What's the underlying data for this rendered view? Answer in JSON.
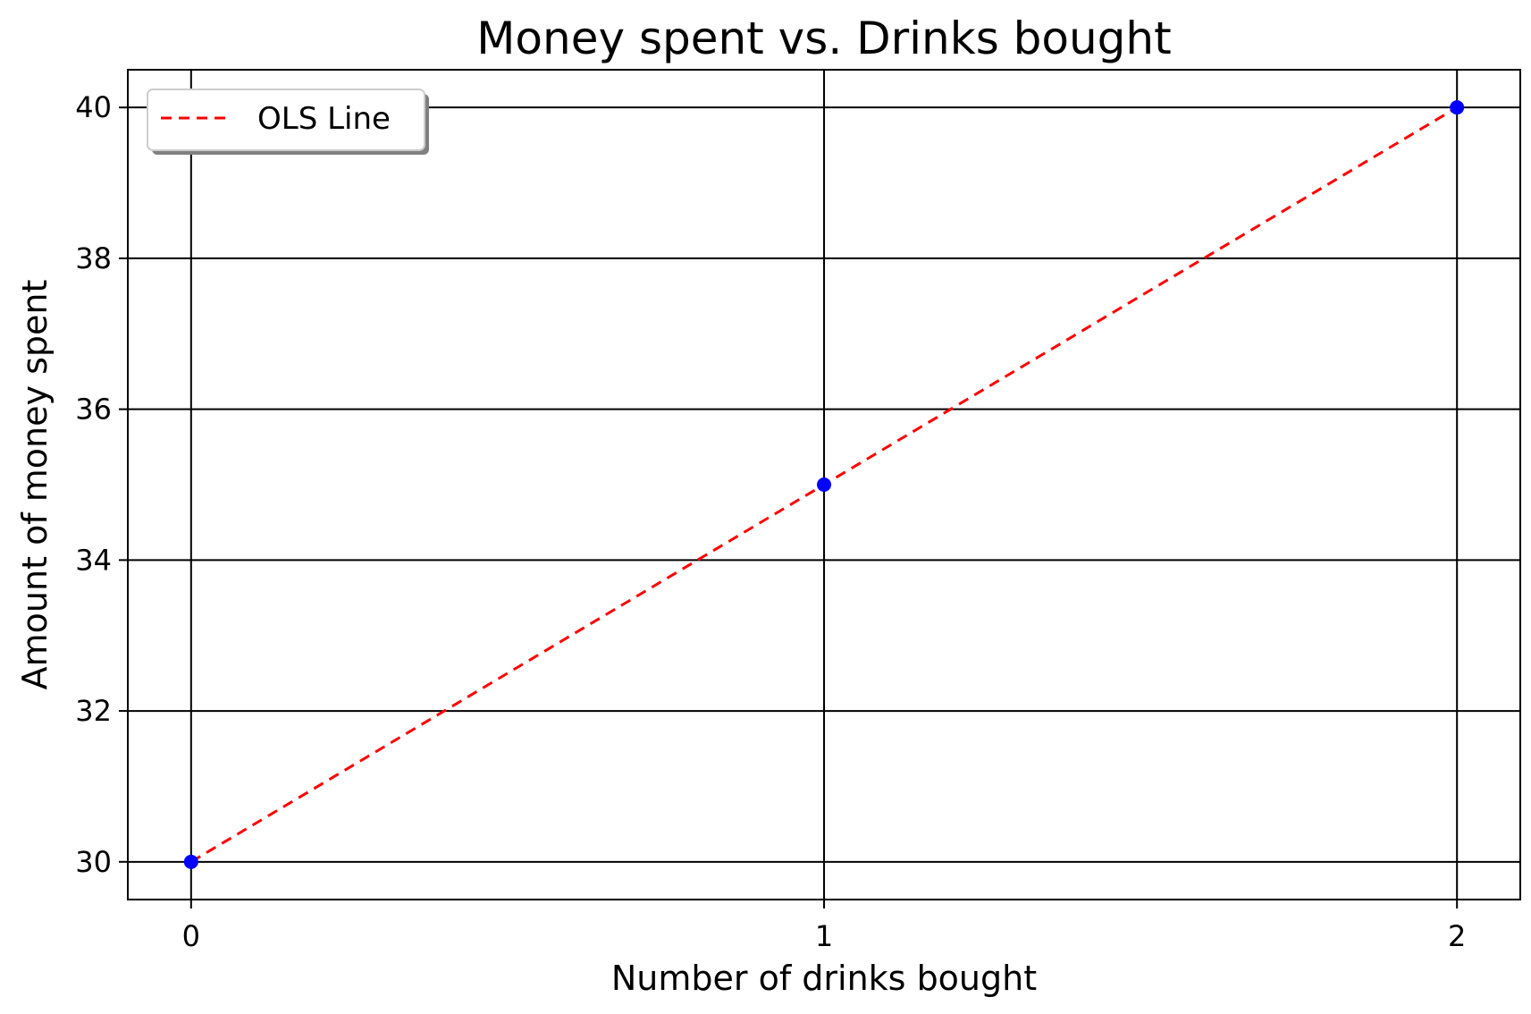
{
  "chart_data": {
    "type": "scatter",
    "title": "Money spent vs. Drinks bought",
    "xlabel": "Number of drinks bought",
    "ylabel": "Amount of money spent",
    "xlim": [
      -0.1,
      2.1
    ],
    "ylim": [
      29.5,
      40.5
    ],
    "xticks": [
      0,
      1,
      2
    ],
    "yticks": [
      30,
      32,
      34,
      36,
      38,
      40
    ],
    "grid": true,
    "legend_placement": "upper left",
    "points": {
      "x": [
        0,
        1,
        2
      ],
      "y": [
        30,
        35,
        40
      ],
      "color": "#0000ff"
    },
    "series": [
      {
        "name": "OLS Line",
        "x": [
          0,
          2
        ],
        "y": [
          30,
          40
        ],
        "color": "#ff0000",
        "style": "dashed"
      }
    ]
  }
}
